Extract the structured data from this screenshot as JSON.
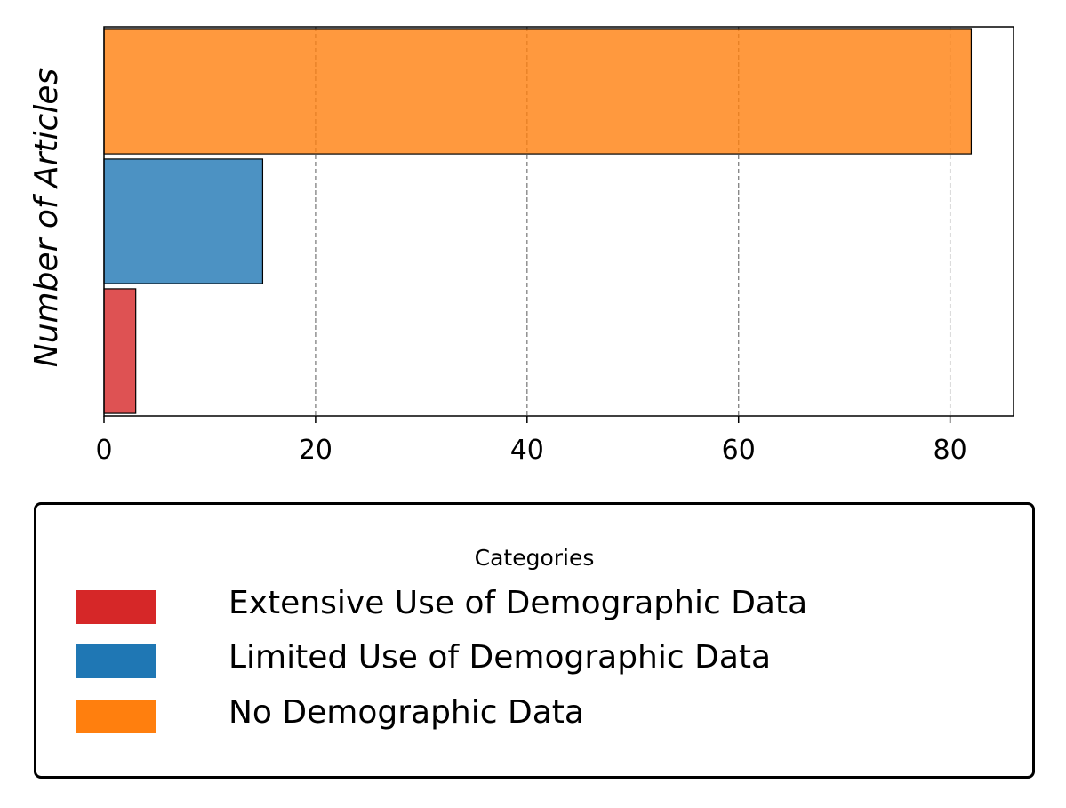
{
  "chart_data": {
    "type": "bar",
    "orientation": "horizontal",
    "ylabel": "Number of Articles",
    "xlim": [
      0,
      86
    ],
    "x_ticks": [
      0,
      20,
      40,
      60,
      80
    ],
    "grid": "x-dashed",
    "categories": [
      "Extensive Use of Demographic Data",
      "Limited Use of Demographic Data",
      "No Demographic Data"
    ],
    "values": [
      3,
      15,
      82
    ],
    "colors": [
      "#d62728",
      "#1f77b4",
      "#ff7f0e"
    ],
    "legend": {
      "title": "Categories",
      "placement": "below",
      "items": [
        {
          "label": "Extensive Use of Demographic Data",
          "color": "#d62728"
        },
        {
          "label": "Limited Use of Demographic Data",
          "color": "#1f77b4"
        },
        {
          "label": "No Demographic Data",
          "color": "#ff7f0e"
        }
      ]
    }
  }
}
